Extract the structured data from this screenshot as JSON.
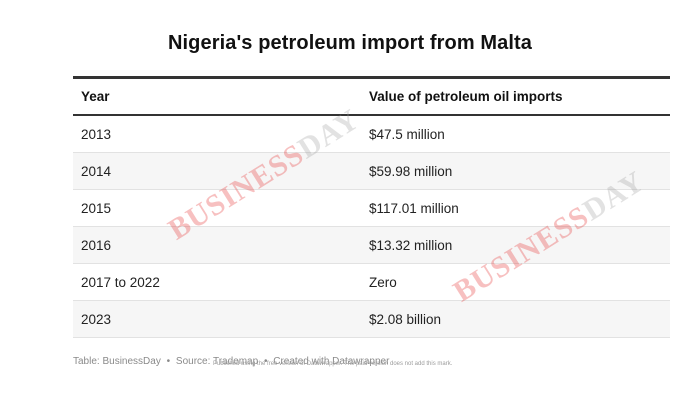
{
  "chart_data": {
    "type": "table",
    "title": "Nigeria's petroleum import from Malta",
    "columns": [
      "Year",
      "Value of petroleum oil imports"
    ],
    "rows": [
      [
        "2013",
        "$47.5 million"
      ],
      [
        "2014",
        "$59.98 million"
      ],
      [
        "2015",
        "$117.01 million"
      ],
      [
        "2016",
        "$13.32 million"
      ],
      [
        "2017 to 2022",
        "Zero"
      ],
      [
        "2023",
        "$2.08 billion"
      ]
    ]
  },
  "footer": {
    "table_credit": "Table: BusinessDay",
    "source": "Source: Trademap",
    "created_with": "Created with Datawrapper",
    "separator": "•",
    "watermark_note": "Published using the free version of Datawrapper. The paid version does not add this mark."
  },
  "watermark": {
    "text_a": "BUSINESS",
    "text_b": "DAY"
  }
}
